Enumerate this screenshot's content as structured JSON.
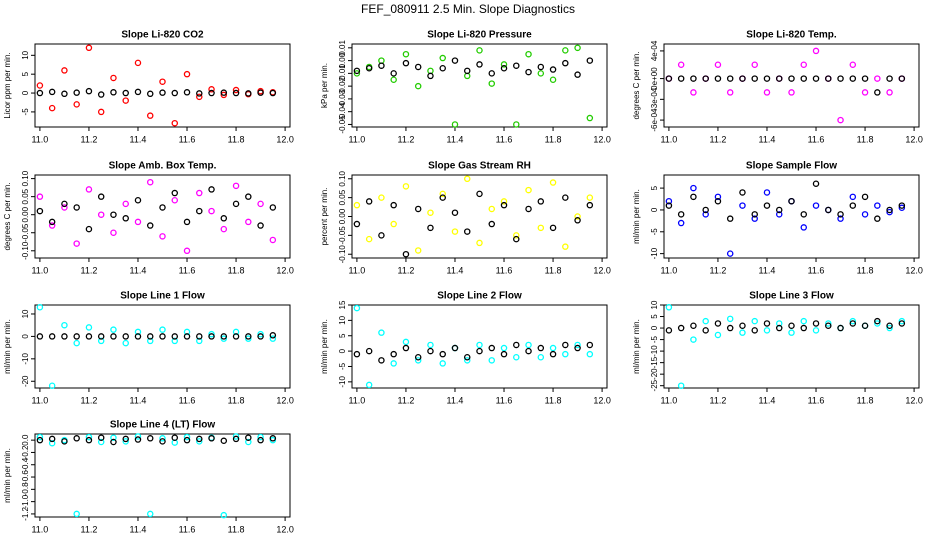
{
  "title": "FEF_080911  2.5 Min. Slope Diagnostics",
  "chart_data": [
    {
      "type": "scatter",
      "title": "Slope Li-820 CO2",
      "ylabel": "Licor ppm per min.",
      "x": [
        11.0,
        11.05,
        11.1,
        11.15,
        11.2,
        11.25,
        11.3,
        11.35,
        11.4,
        11.45,
        11.5,
        11.55,
        11.6,
        11.65,
        11.7,
        11.75,
        11.8,
        11.85,
        11.9,
        11.95
      ],
      "series": [
        {
          "color": "#ff0000",
          "values": [
            2,
            -4,
            6,
            -3,
            12,
            -5,
            4,
            -2,
            8,
            -6,
            3,
            -8,
            5,
            -1,
            1,
            -0.5,
            0.8,
            -0.3,
            0.5,
            0.2
          ]
        },
        {
          "color": "#000000",
          "values": [
            0,
            0.3,
            -0.2,
            0.1,
            0.5,
            -0.4,
            0.2,
            0,
            0.3,
            -0.2,
            0.1,
            0,
            0.2,
            -0.1,
            0,
            0.1,
            0,
            -0.1,
            0.1,
            0
          ]
        }
      ],
      "xlim": [
        10.98,
        12.02
      ],
      "xticks": [
        {
          "value": 11,
          "label": "11.0"
        },
        11.2,
        11.4,
        11.6,
        11.8,
        {
          "value": 12,
          "label": "12.0"
        }
      ],
      "ylim": [
        -9,
        13
      ],
      "yticks": [
        -5,
        0,
        5,
        10
      ]
    },
    {
      "type": "scatter",
      "title": "Slope Li-820 Pressure",
      "ylabel": "kPa per min.",
      "x": [
        11.0,
        11.05,
        11.1,
        11.15,
        11.2,
        11.25,
        11.3,
        11.35,
        11.4,
        11.45,
        11.5,
        11.55,
        11.6,
        11.65,
        11.7,
        11.75,
        11.8,
        11.85,
        11.9,
        11.95
      ],
      "series": [
        {
          "color": "#22cc00",
          "values": [
            -0.01,
            -0.005,
            0,
            -0.015,
            0.005,
            -0.02,
            -0.008,
            0.002,
            -0.05,
            -0.012,
            0.008,
            -0.018,
            -0.003,
            -0.05,
            0.005,
            -0.01,
            -0.015,
            0.008,
            0.01,
            -0.045
          ]
        },
        {
          "color": "#000000",
          "values": [
            -0.008,
            -0.006,
            -0.004,
            -0.01,
            -0.002,
            -0.005,
            -0.012,
            -0.006,
            0,
            -0.008,
            -0.003,
            -0.01,
            -0.006,
            -0.004,
            -0.009,
            -0.005,
            -0.007,
            -0.002,
            -0.011,
            0
          ]
        }
      ],
      "xlim": [
        10.98,
        12.02
      ],
      "xticks": [
        {
          "value": 11,
          "label": "11.0"
        },
        11.2,
        11.4,
        11.6,
        11.8,
        {
          "value": 12,
          "label": "12.0"
        }
      ],
      "ylim": [
        -0.052,
        0.013
      ],
      "yticks": [
        -0.05,
        -0.04,
        -0.03,
        -0.02,
        -0.01,
        {
          "value": 0,
          "label": "0.00"
        },
        0.01
      ]
    },
    {
      "type": "scatter",
      "title": "Slope Li-820 Temp.",
      "ylabel": "degrees C per min.",
      "x": [
        11.0,
        11.05,
        11.1,
        11.15,
        11.2,
        11.25,
        11.3,
        11.35,
        11.4,
        11.45,
        11.5,
        11.55,
        11.6,
        11.65,
        11.7,
        11.75,
        11.8,
        11.85,
        11.9,
        11.95
      ],
      "series": [
        {
          "color": "#ff00ff",
          "values": [
            0,
            0.0002,
            -0.0002,
            0,
            0.0002,
            -0.0002,
            0,
            0.0002,
            -0.0002,
            0,
            -0.0002,
            0.0002,
            0.0004,
            0,
            -0.0006,
            0.0002,
            -0.0002,
            0,
            -0.0002,
            0
          ]
        },
        {
          "color": "#000000",
          "values": [
            0,
            0,
            0,
            0,
            0,
            0,
            0,
            0,
            0,
            0,
            0,
            0,
            0,
            0,
            0,
            0,
            0,
            -0.0002,
            0,
            0
          ]
        }
      ],
      "xlim": [
        10.98,
        12.02
      ],
      "xticks": [
        {
          "value": 11,
          "label": "11.0"
        },
        11.2,
        11.4,
        11.6,
        11.8,
        {
          "value": 12,
          "label": "12.0"
        }
      ],
      "ylim": [
        -0.0007,
        0.0005
      ],
      "yticks": [
        {
          "value": -0.0006,
          "label": "-6e-04"
        },
        {
          "value": -0.0003,
          "label": "-3e-04"
        },
        {
          "value": 0,
          "label": "0e+00"
        },
        {
          "value": 0.0004,
          "label": "4e-04"
        }
      ]
    },
    {
      "type": "scatter",
      "title": "Slope Amb. Box Temp.",
      "ylabel": "degrees C per min.",
      "x": [
        11.0,
        11.05,
        11.1,
        11.15,
        11.2,
        11.25,
        11.3,
        11.35,
        11.4,
        11.45,
        11.5,
        11.55,
        11.6,
        11.65,
        11.7,
        11.75,
        11.8,
        11.85,
        11.9,
        11.95
      ],
      "series": [
        {
          "color": "#ff00ff",
          "values": [
            0.05,
            -0.03,
            0.02,
            -0.08,
            0.07,
            0,
            -0.05,
            0.03,
            -0.02,
            0.09,
            -0.06,
            0.04,
            -0.1,
            0.06,
            0.01,
            -0.04,
            0.08,
            -0.02,
            0.03,
            -0.07
          ]
        },
        {
          "color": "#000000",
          "values": [
            0.01,
            -0.02,
            0.03,
            0.02,
            -0.04,
            0.05,
            0,
            -0.01,
            0.04,
            -0.03,
            0.02,
            0.06,
            -0.02,
            0.01,
            0.07,
            -0.01,
            0.03,
            0.05,
            -0.03,
            0.02
          ]
        }
      ],
      "xlim": [
        10.98,
        12.02
      ],
      "xticks": [
        {
          "value": 11,
          "label": "11.0"
        },
        11.2,
        11.4,
        11.6,
        11.8,
        {
          "value": 12,
          "label": "12.0"
        }
      ],
      "ylim": [
        -0.12,
        0.11
      ],
      "yticks": [
        {
          "value": -0.1,
          "label": "-0.10"
        },
        -0.05,
        {
          "value": 0,
          "label": "0.00"
        },
        0.05,
        {
          "value": 0.1,
          "label": "0.10"
        }
      ]
    },
    {
      "type": "scatter",
      "title": "Slope Gas Stream RH",
      "ylabel": "percent per min.",
      "x": [
        11.0,
        11.05,
        11.1,
        11.15,
        11.2,
        11.25,
        11.3,
        11.35,
        11.4,
        11.45,
        11.5,
        11.55,
        11.6,
        11.65,
        11.7,
        11.75,
        11.8,
        11.85,
        11.9,
        11.95
      ],
      "series": [
        {
          "color": "#ffff00",
          "values": [
            0.03,
            -0.06,
            0.05,
            -0.02,
            0.08,
            -0.09,
            0.01,
            0.06,
            -0.04,
            0.1,
            -0.07,
            0.02,
            0.04,
            -0.05,
            0.07,
            -0.03,
            0.09,
            -0.08,
            0,
            0.05
          ]
        },
        {
          "color": "#000000",
          "values": [
            -0.02,
            0.04,
            -0.05,
            0.03,
            -0.1,
            0.02,
            -0.03,
            0.05,
            0.01,
            -0.04,
            0.06,
            -0.02,
            0.03,
            -0.06,
            0.02,
            0.04,
            -0.03,
            0.05,
            -0.01,
            0.03
          ]
        }
      ],
      "xlim": [
        10.98,
        12.02
      ],
      "xticks": [
        {
          "value": 11,
          "label": "11.0"
        },
        11.2,
        11.4,
        11.6,
        11.8,
        {
          "value": 12,
          "label": "12.0"
        }
      ],
      "ylim": [
        -0.11,
        0.11
      ],
      "yticks": [
        {
          "value": -0.1,
          "label": "-0.10"
        },
        -0.05,
        {
          "value": 0,
          "label": "0.00"
        },
        0.05,
        {
          "value": 0.1,
          "label": "0.10"
        }
      ]
    },
    {
      "type": "scatter",
      "title": "Slope Sample Flow",
      "ylabel": "ml/min per min.",
      "x": [
        11.0,
        11.05,
        11.1,
        11.15,
        11.2,
        11.25,
        11.3,
        11.35,
        11.4,
        11.45,
        11.5,
        11.55,
        11.6,
        11.65,
        11.7,
        11.75,
        11.8,
        11.85,
        11.9,
        11.95
      ],
      "series": [
        {
          "color": "#0000ff",
          "values": [
            2,
            -3,
            5,
            -1,
            3,
            -10,
            1,
            -2,
            4,
            -1,
            2,
            -4,
            1,
            0,
            -2,
            3,
            -1,
            1,
            -0.5,
            0.5
          ]
        },
        {
          "color": "#000000",
          "values": [
            1,
            -1,
            3,
            0,
            2,
            -2,
            4,
            -1,
            1,
            0,
            2,
            -1,
            6,
            0,
            -1,
            1,
            3,
            -2,
            0,
            1
          ]
        }
      ],
      "xlim": [
        10.98,
        12.02
      ],
      "xticks": [
        {
          "value": 11,
          "label": "11.0"
        },
        11.2,
        11.4,
        11.6,
        11.8,
        {
          "value": 12,
          "label": "12.0"
        }
      ],
      "ylim": [
        -11,
        8
      ],
      "yticks": [
        -10,
        -5,
        0,
        5
      ]
    },
    {
      "type": "scatter",
      "title": "Slope Line 1 Flow",
      "ylabel": "ml/min per min.",
      "x": [
        11.0,
        11.05,
        11.1,
        11.15,
        11.2,
        11.25,
        11.3,
        11.35,
        11.4,
        11.45,
        11.5,
        11.55,
        11.6,
        11.65,
        11.7,
        11.75,
        11.8,
        11.85,
        11.9,
        11.95
      ],
      "series": [
        {
          "color": "#00ffff",
          "values": [
            13,
            -22,
            5,
            -3,
            4,
            -2,
            3,
            -3,
            2,
            -2,
            3,
            -2,
            2,
            -2,
            1,
            -1,
            2,
            -1,
            1,
            -1
          ]
        },
        {
          "color": "#000000",
          "values": [
            0,
            0,
            0,
            0,
            0,
            0,
            0,
            0,
            0,
            0,
            0,
            0,
            0,
            0,
            0,
            0,
            0,
            0,
            0,
            0.5
          ]
        }
      ],
      "xlim": [
        10.98,
        12.02
      ],
      "xticks": [
        {
          "value": 11,
          "label": "11.0"
        },
        11.2,
        11.4,
        11.6,
        11.8,
        {
          "value": 12,
          "label": "12.0"
        }
      ],
      "ylim": [
        -23,
        14
      ],
      "yticks": [
        -20,
        -10,
        0,
        10
      ]
    },
    {
      "type": "scatter",
      "title": "Slope Line 2 Flow",
      "ylabel": "ml/min per min.",
      "x": [
        11.0,
        11.05,
        11.1,
        11.15,
        11.2,
        11.25,
        11.3,
        11.35,
        11.4,
        11.45,
        11.5,
        11.55,
        11.6,
        11.65,
        11.7,
        11.75,
        11.8,
        11.85,
        11.9,
        11.95
      ],
      "series": [
        {
          "color": "#00ffff",
          "values": [
            14,
            -11,
            6,
            -4,
            3,
            -3,
            2,
            -4,
            1,
            -3,
            2,
            -3,
            1,
            -2,
            2,
            -2,
            1,
            -1,
            2,
            -1
          ]
        },
        {
          "color": "#000000",
          "values": [
            -1,
            0,
            -3,
            -1,
            1,
            -2,
            0,
            -1,
            1,
            -2,
            0,
            1,
            -1,
            2,
            0,
            1,
            -1,
            2,
            1,
            2
          ]
        }
      ],
      "xlim": [
        10.98,
        12.02
      ],
      "xticks": [
        {
          "value": 11,
          "label": "11.0"
        },
        11.2,
        11.4,
        11.6,
        11.8,
        {
          "value": 12,
          "label": "12.0"
        }
      ],
      "ylim": [
        -12,
        15
      ],
      "yticks": [
        -10,
        -5,
        0,
        5,
        10,
        15
      ]
    },
    {
      "type": "scatter",
      "title": "Slope Line 3 Flow",
      "ylabel": "ml/min per min.",
      "x": [
        11.0,
        11.05,
        11.1,
        11.15,
        11.2,
        11.25,
        11.3,
        11.35,
        11.4,
        11.45,
        11.5,
        11.55,
        11.6,
        11.65,
        11.7,
        11.75,
        11.8,
        11.85,
        11.9,
        11.95
      ],
      "series": [
        {
          "color": "#00ffff",
          "values": [
            9,
            -25,
            -5,
            3,
            -3,
            4,
            -2,
            3,
            -1,
            2,
            -2,
            3,
            -1,
            2,
            0,
            3,
            1,
            2,
            0,
            3
          ]
        },
        {
          "color": "#000000",
          "values": [
            -1,
            0,
            1,
            -1,
            2,
            0,
            1,
            -1,
            2,
            0,
            1,
            0,
            2,
            1,
            0,
            2,
            1,
            3,
            1,
            2
          ]
        }
      ],
      "xlim": [
        10.98,
        12.02
      ],
      "xticks": [
        {
          "value": 11,
          "label": "11.0"
        },
        11.2,
        11.4,
        11.6,
        11.8,
        {
          "value": 12,
          "label": "12.0"
        }
      ],
      "ylim": [
        -26,
        10
      ],
      "yticks": [
        -25,
        -20,
        -15,
        -10,
        -5,
        0,
        5,
        10
      ]
    },
    {
      "type": "scatter",
      "title": "Slope Line 4 (LT) Flow",
      "ylabel": "ml/min per min.",
      "x": [
        11.0,
        11.05,
        11.1,
        11.15,
        11.2,
        11.25,
        11.3,
        11.35,
        11.4,
        11.45,
        11.5,
        11.55,
        11.6,
        11.65,
        11.7,
        11.75,
        11.8,
        11.85,
        11.9,
        11.95
      ],
      "series": [
        {
          "color": "#00ffff",
          "values": [
            0.05,
            -0.05,
            0,
            -1.2,
            0.05,
            -0.03,
            0.04,
            -0.02,
            0.06,
            -1.2,
            0.03,
            -0.04,
            0.05,
            -0.02,
            0.04,
            -1.22,
            0.06,
            -0.03,
            0.05,
            0
          ]
        },
        {
          "color": "#000000",
          "values": [
            0,
            0.02,
            -0.02,
            0.03,
            0,
            0.04,
            -0.03,
            0.02,
            0.01,
            0.03,
            -0.02,
            0.04,
            0,
            0.02,
            0.03,
            -0.01,
            0.02,
            0.04,
            0,
            0.03
          ]
        }
      ],
      "xlim": [
        10.98,
        12.02
      ],
      "xticks": [
        {
          "value": 11,
          "label": "11.0"
        },
        11.2,
        11.4,
        11.6,
        11.8,
        {
          "value": 12,
          "label": "12.0"
        }
      ],
      "ylim": [
        -1.25,
        0.1
      ],
      "yticks": [
        -1.2,
        {
          "value": -1,
          "label": "-1.0"
        },
        -0.8,
        -0.6,
        -0.4,
        -0.2,
        {
          "value": 0,
          "label": "0.0"
        }
      ]
    }
  ]
}
